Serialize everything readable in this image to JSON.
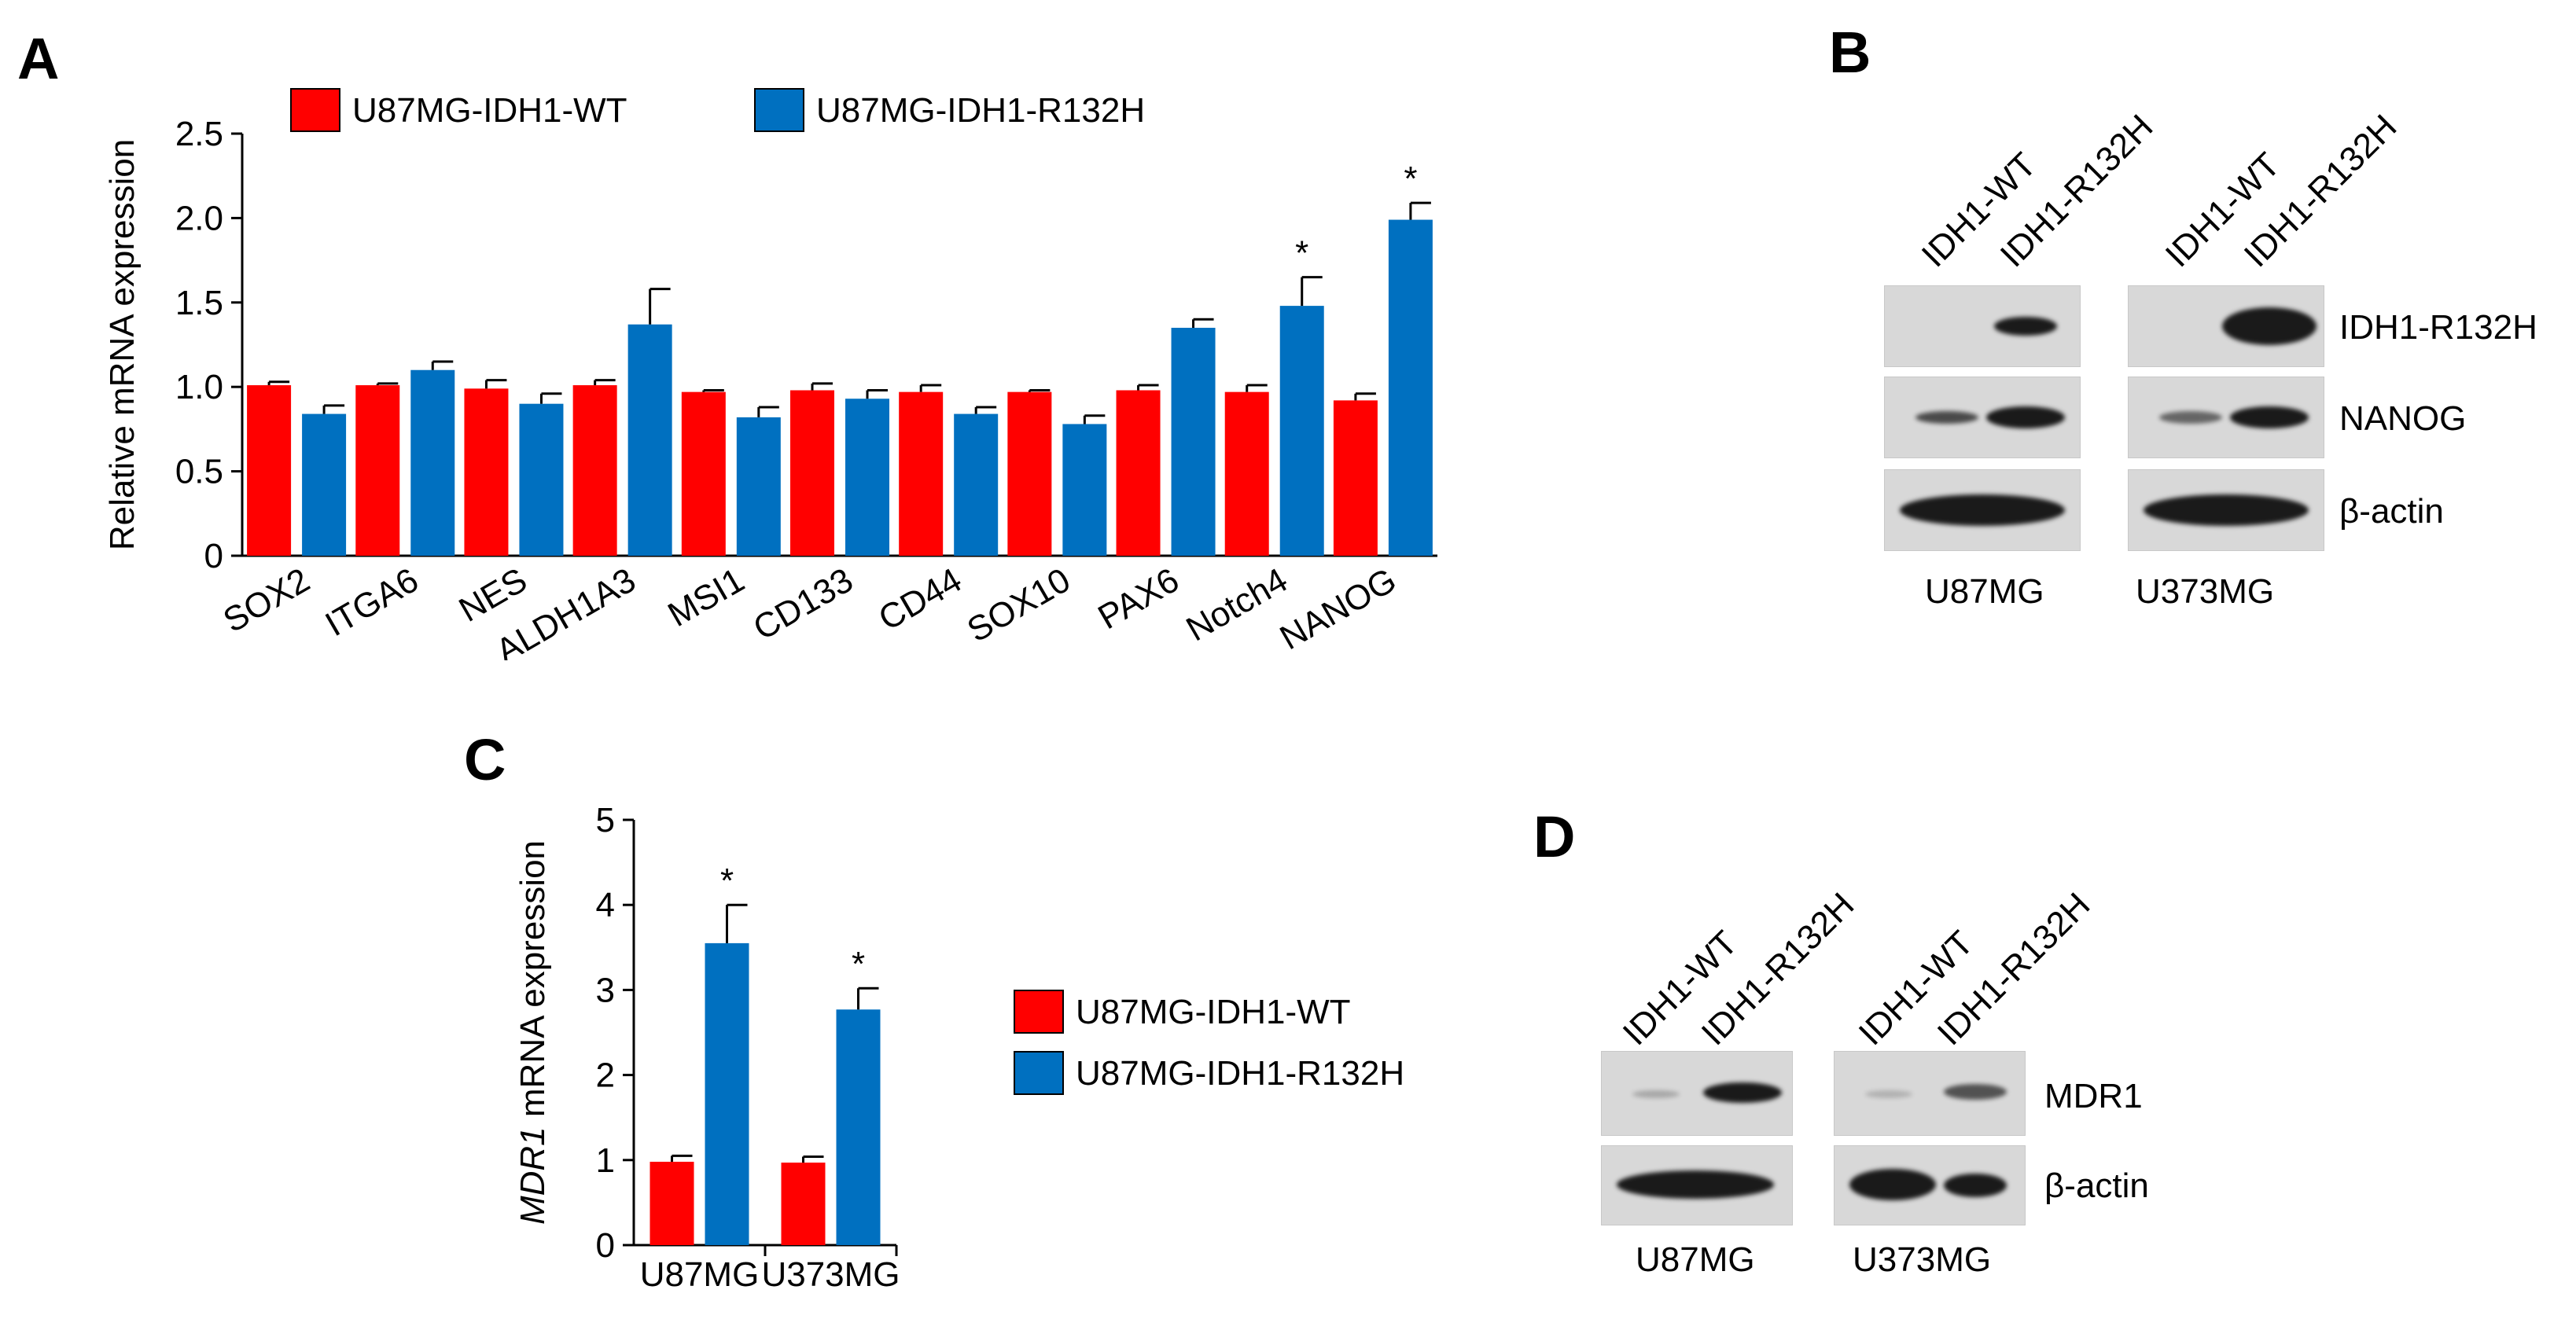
{
  "panels": {
    "A": "A",
    "B": "B",
    "C": "C",
    "D": "D"
  },
  "chart_data": [
    {
      "type": "bar",
      "panel": "A",
      "ylabel": "Relative mRNA expression",
      "xlabel": "",
      "ylim": [
        0,
        2.5
      ],
      "yticks": [
        "0",
        "0.5",
        "1.0",
        "1.5",
        "2.0",
        "2.5"
      ],
      "categories": [
        "SOX2",
        "ITGA6",
        "NES",
        "ALDH1A3",
        "MSI1",
        "CD133",
        "CD44",
        "SOX10",
        "PAX6",
        "Notch4",
        "NANOG"
      ],
      "series": [
        {
          "name": "U87MG-IDH1-WT",
          "color": "#ff0000",
          "values": [
            1.01,
            1.01,
            0.99,
            1.01,
            0.97,
            0.98,
            0.97,
            0.97,
            0.98,
            0.97,
            0.92
          ],
          "errors": [
            0.02,
            0.01,
            0.05,
            0.03,
            0.01,
            0.04,
            0.04,
            0.01,
            0.03,
            0.04,
            0.04
          ]
        },
        {
          "name": "U87MG-IDH1-R132H",
          "color": "#0070c0",
          "values": [
            0.84,
            1.1,
            0.9,
            1.37,
            0.82,
            0.93,
            0.84,
            0.78,
            1.35,
            1.48,
            1.99
          ],
          "errors": [
            0.05,
            0.05,
            0.06,
            0.21,
            0.06,
            0.05,
            0.04,
            0.05,
            0.05,
            0.17,
            0.1
          ]
        }
      ],
      "significance": [
        "",
        "",
        "",
        "",
        "",
        "",
        "",
        "",
        "",
        "*",
        "*"
      ],
      "legend": "top"
    },
    {
      "type": "bar",
      "panel": "C",
      "ylabel_italic": "MDR1",
      "ylabel_rest": " mRNA expression",
      "ylim": [
        0,
        5
      ],
      "yticks": [
        "0",
        "1",
        "2",
        "3",
        "4",
        "5"
      ],
      "categories": [
        "U87MG",
        "U373MG"
      ],
      "series": [
        {
          "name": "U87MG-IDH1-WT",
          "color": "#ff0000",
          "values": [
            0.98,
            0.97
          ],
          "errors": [
            0.07,
            0.07
          ]
        },
        {
          "name": "U87MG-IDH1-R132H",
          "color": "#0070c0",
          "values": [
            3.55,
            2.77
          ],
          "errors": [
            0.45,
            0.25
          ]
        }
      ],
      "significance": [
        "*",
        "*"
      ],
      "legend": "right"
    }
  ],
  "blotB": {
    "lanes": [
      "IDH1-WT",
      "IDH1-R132H"
    ],
    "rows": [
      "IDH1-R132H",
      "NANOG",
      "β-actin"
    ],
    "cells": [
      "U87MG",
      "U373MG"
    ]
  },
  "blotD": {
    "lanes": [
      "IDH1-WT",
      "IDH1-R132H"
    ],
    "rows": [
      "MDR1",
      "β-actin"
    ],
    "cells": [
      "U87MG",
      "U373MG"
    ]
  }
}
